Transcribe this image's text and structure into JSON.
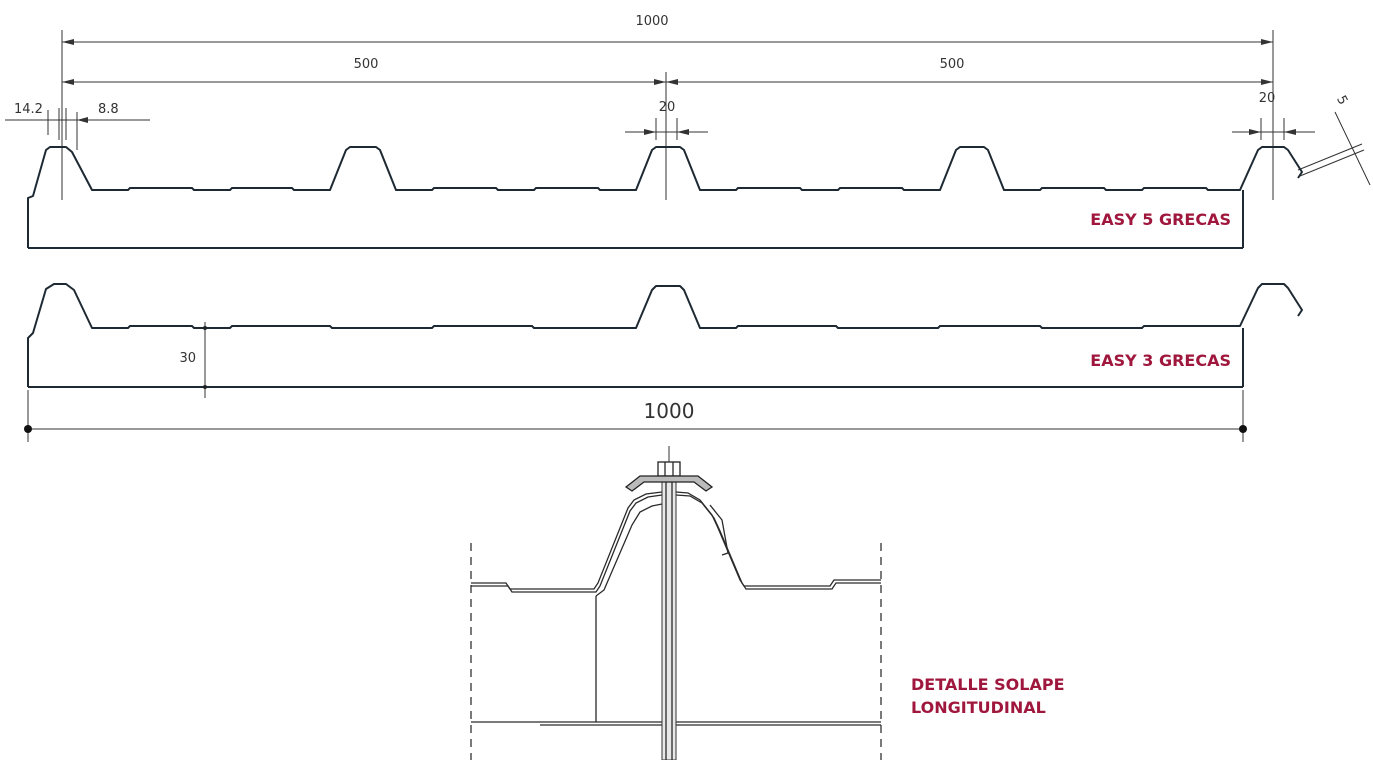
{
  "profiles": [
    {
      "name": "EASY 5 GRECAS"
    },
    {
      "name": "EASY 3 GRECAS"
    }
  ],
  "detail": {
    "title_line1": "DETALLE SOLAPE",
    "title_line2": "LONGITUDINAL"
  },
  "dimensions": {
    "total_width_top": "1000",
    "half_width_left": "500",
    "half_width_right": "500",
    "crest_top_width": "14.2",
    "crest_offset": "8.8",
    "crest_width_mid": "20",
    "crest_width_right": "20",
    "edge_thickness": "5",
    "height": "30",
    "total_width_bottom": "1000"
  },
  "colors": {
    "label_red": "#a0173d",
    "line": "#1e2a33",
    "screw_cap": "#bbbbbb"
  }
}
